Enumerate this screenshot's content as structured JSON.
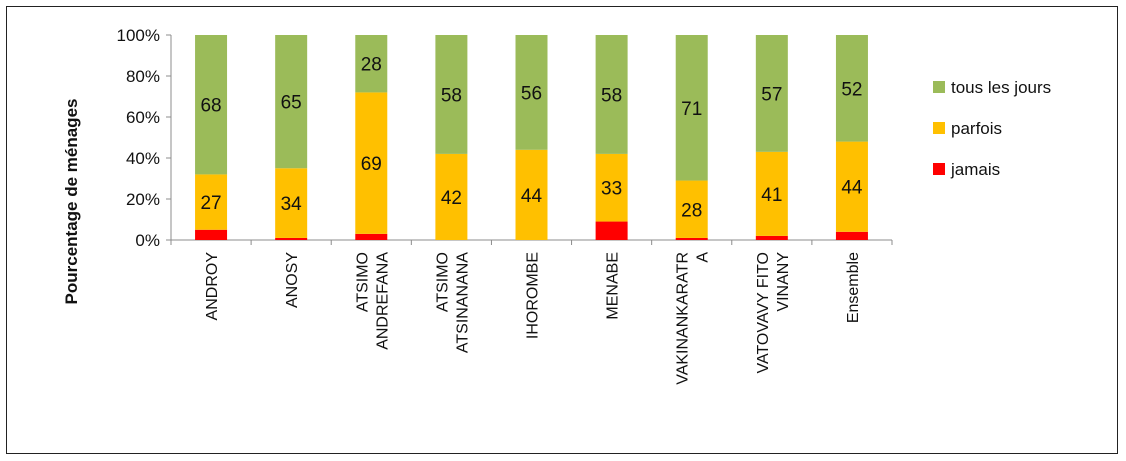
{
  "chart_data": {
    "type": "bar",
    "stacked": true,
    "percent_stacked": true,
    "title": "",
    "xlabel": "",
    "ylabel": "Pourcentage de ménages",
    "ylim": [
      0,
      100
    ],
    "y_ticks": [
      "0%",
      "20%",
      "40%",
      "60%",
      "80%",
      "100%"
    ],
    "categories": [
      [
        "ANDROY"
      ],
      [
        "ANOSY"
      ],
      [
        "ATSIMO",
        "ANDREFANA"
      ],
      [
        "ATSIMO",
        "ATSINANANA"
      ],
      [
        "IHOROMBE"
      ],
      [
        "MENABE"
      ],
      [
        "VAKINANKARATR",
        "A"
      ],
      [
        "VATOVAVY FITO",
        "VINANY"
      ],
      [
        "Ensemble"
      ]
    ],
    "series": [
      {
        "name": "jamais",
        "color": "#ff0000",
        "values": [
          5,
          1,
          3,
          0,
          0,
          9,
          1,
          2,
          4
        ],
        "labels": [
          "",
          "",
          "",
          "",
          "",
          "",
          "",
          "",
          ""
        ]
      },
      {
        "name": "parfois",
        "color": "#ffc000",
        "values": [
          27,
          34,
          69,
          42,
          44,
          33,
          28,
          41,
          44
        ],
        "labels": [
          "27",
          "34",
          "69",
          "42",
          "44",
          "33",
          "28",
          "41",
          "44"
        ]
      },
      {
        "name": "tous les jours",
        "color": "#9bbb59",
        "values": [
          68,
          65,
          28,
          58,
          56,
          58,
          71,
          57,
          52
        ],
        "labels": [
          "68",
          "65",
          "28",
          "58",
          "56",
          "58",
          "71",
          "57",
          "52"
        ]
      }
    ],
    "legend_position": "right",
    "legend_order": [
      "tous les jours",
      "parfois",
      "jamais"
    ],
    "grid": false
  }
}
